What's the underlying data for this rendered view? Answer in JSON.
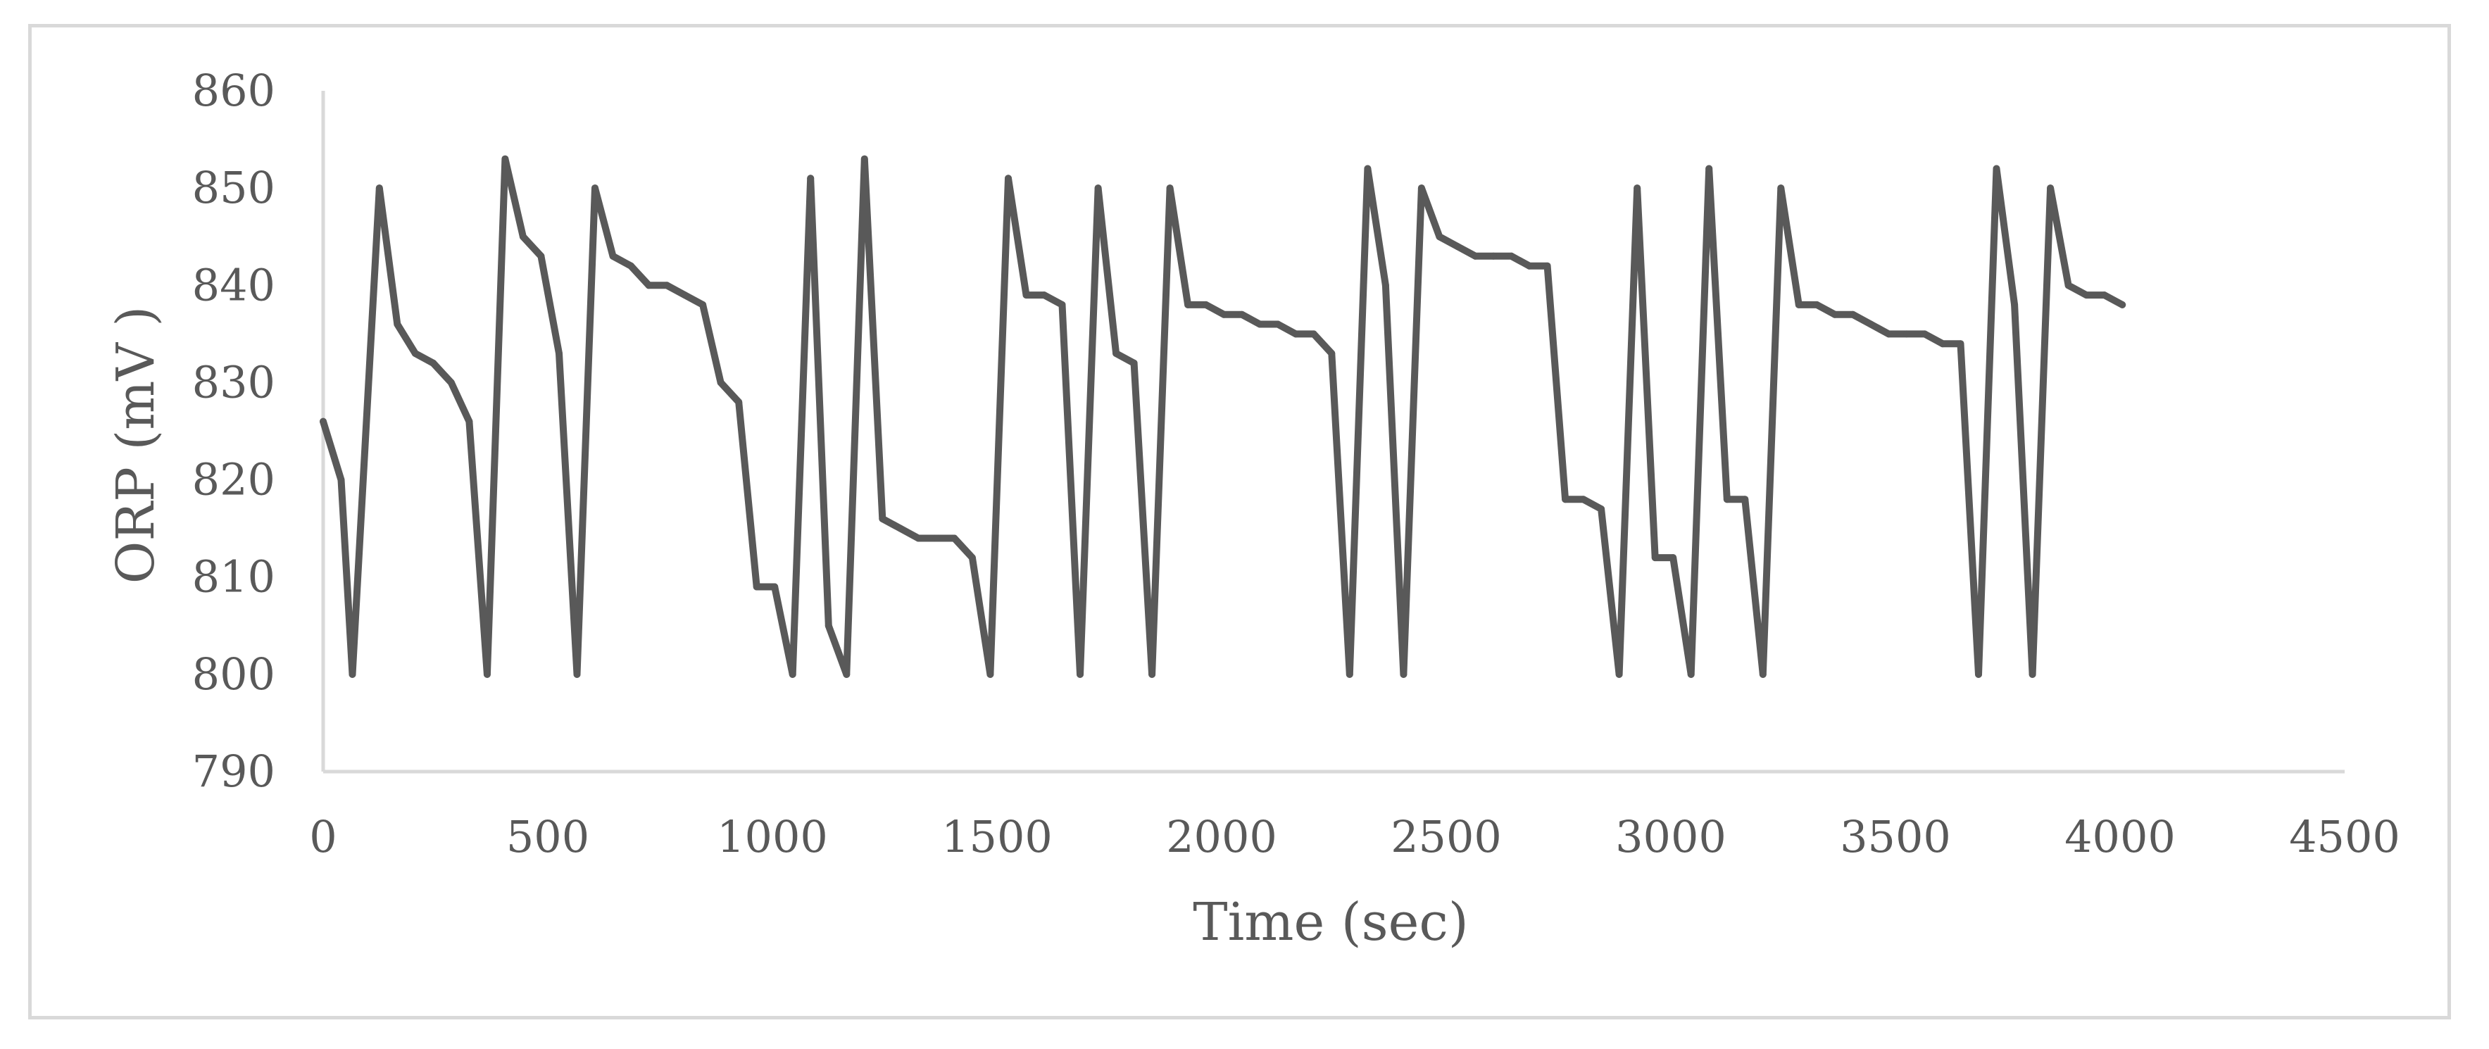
{
  "chart_data": {
    "type": "line",
    "title": "",
    "xlabel": "Time (sec)",
    "ylabel": "ORP (mV )",
    "xlim": [
      0,
      4500
    ],
    "ylim": [
      790,
      860
    ],
    "xticks": [
      0,
      500,
      1000,
      1500,
      2000,
      2500,
      3000,
      3500,
      4000,
      4500
    ],
    "yticks": [
      790,
      800,
      810,
      820,
      830,
      840,
      850,
      860
    ],
    "grid": false,
    "legend": "none",
    "line_color": "#595959",
    "series": [
      {
        "x": [
          0,
          40,
          65,
          125,
          165,
          205,
          245,
          285,
          325,
          365,
          405,
          445,
          485,
          525,
          565,
          605,
          645,
          685,
          725,
          765,
          805,
          845,
          885,
          925,
          965,
          1005,
          1045,
          1085,
          1125,
          1165,
          1205,
          1245,
          1285,
          1325,
          1365,
          1405,
          1445,
          1485,
          1525,
          1565,
          1605,
          1645,
          1685,
          1725,
          1765,
          1805,
          1845,
          1885,
          1925,
          1965,
          2005,
          2045,
          2085,
          2125,
          2165,
          2205,
          2245,
          2285,
          2325,
          2365,
          2405,
          2445,
          2485,
          2525,
          2565,
          2605,
          2645,
          2685,
          2725,
          2765,
          2805,
          2845,
          2885,
          2925,
          2965,
          3005,
          3045,
          3085,
          3125,
          3165,
          3205,
          3245,
          3285,
          3325,
          3365,
          3405,
          3445,
          3485,
          3525,
          3565,
          3605,
          3645,
          3685,
          3725,
          3765,
          3805,
          3845,
          3885,
          3925,
          3965,
          4005
        ],
        "y": [
          826,
          820,
          800,
          850,
          836,
          833,
          832,
          830,
          826,
          800,
          853,
          845,
          843,
          833,
          800,
          850,
          843,
          842,
          840,
          840,
          839,
          838,
          830,
          828,
          809,
          809,
          800,
          851,
          805,
          800,
          853,
          816,
          815,
          814,
          814,
          814,
          812,
          800,
          851,
          839,
          839,
          838,
          800,
          850,
          833,
          832,
          800,
          850,
          838,
          838,
          837,
          837,
          836,
          836,
          835,
          835,
          833,
          800,
          852,
          840,
          800,
          850,
          845,
          844,
          843,
          843,
          843,
          842,
          842,
          818,
          818,
          817,
          800,
          850,
          812,
          812,
          800,
          852,
          818,
          818,
          800,
          850,
          838,
          838,
          837,
          837,
          836,
          835,
          835,
          835,
          834,
          834,
          800,
          852,
          838,
          800,
          850,
          840,
          839,
          839,
          838
        ]
      }
    ]
  }
}
